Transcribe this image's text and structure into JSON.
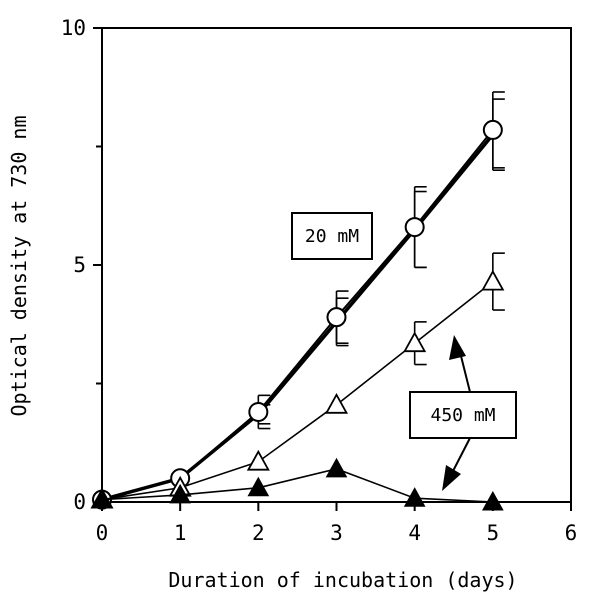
{
  "chart_data": {
    "type": "line",
    "title": "",
    "xlabel": "Duration of incubation (days)",
    "ylabel": "Optical density at 730 nm",
    "xlim": [
      0,
      6
    ],
    "ylim": [
      0,
      10
    ],
    "x_ticks": [
      "0",
      "1",
      "2",
      "3",
      "4",
      "5",
      "6"
    ],
    "y_ticks": [
      "0",
      "5",
      "10"
    ],
    "y_tick_values": [
      0,
      5,
      10
    ],
    "y_minor_ticks": [
      2.5,
      7.5
    ],
    "grid": false,
    "legend": "none",
    "series": [
      {
        "marker": "filled-square",
        "color": "#000000",
        "x": [
          0,
          1,
          2,
          3,
          4,
          5
        ],
        "y": [
          0.05,
          0.5,
          1.85,
          3.8,
          5.75,
          7.75
        ],
        "err": [
          0,
          0,
          0.2,
          0.5,
          0.8,
          0.75
        ]
      },
      {
        "marker": "open-circle",
        "color": "#000000",
        "x": [
          0,
          1,
          2,
          3,
          4,
          5
        ],
        "y": [
          0.05,
          0.5,
          1.9,
          3.9,
          5.8,
          7.85
        ],
        "err": [
          0,
          0,
          0.35,
          0.55,
          0.85,
          0.8
        ]
      },
      {
        "marker": "open-triangle",
        "color": "#000000",
        "x": [
          0,
          1,
          2,
          3,
          4,
          5
        ],
        "y": [
          0.05,
          0.3,
          0.85,
          2.05,
          3.35,
          4.65
        ],
        "err": [
          0,
          0,
          0,
          0,
          0.45,
          0.6
        ]
      },
      {
        "marker": "filled-triangle",
        "color": "#000000",
        "x": [
          0,
          1,
          2,
          3,
          4,
          5
        ],
        "y": [
          0.05,
          0.15,
          0.3,
          0.7,
          0.08,
          0.0
        ],
        "err": [
          0,
          0,
          0,
          0,
          0,
          0
        ]
      }
    ],
    "annotations": [
      {
        "text": "20 mM"
      },
      {
        "text": "450 mM"
      }
    ]
  }
}
